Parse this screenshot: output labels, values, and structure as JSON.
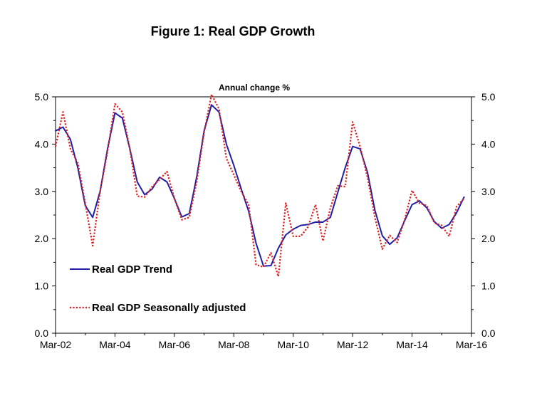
{
  "chart_data": {
    "type": "line",
    "title": "Figure 1: Real GDP Growth",
    "subtitle": "Annual change %",
    "x_tick_labels": [
      "Mar-02",
      "Mar-04",
      "Mar-06",
      "Mar-08",
      "Mar-10",
      "Mar-12",
      "Mar-14",
      "Mar-16"
    ],
    "y_tick_labels": [
      "0.0",
      "1.0",
      "2.0",
      "3.0",
      "4.0",
      "5.0"
    ],
    "ylim": [
      0,
      5
    ],
    "x_start_label": "Mar-02",
    "x_end_label": "Mar-16",
    "series": [
      {
        "name": "Real GDP Trend",
        "color": "#1f1fa8",
        "style": "solid",
        "values": [
          4.28,
          4.36,
          4.1,
          3.5,
          2.7,
          2.45,
          3.0,
          3.9,
          4.66,
          4.55,
          3.9,
          3.2,
          2.93,
          3.05,
          3.3,
          3.2,
          2.85,
          2.46,
          2.53,
          3.3,
          4.28,
          4.83,
          4.68,
          4.0,
          3.55,
          3.05,
          2.58,
          1.9,
          1.42,
          1.43,
          1.8,
          2.08,
          2.2,
          2.28,
          2.3,
          2.35,
          2.35,
          2.45,
          2.98,
          3.5,
          3.95,
          3.9,
          3.4,
          2.6,
          2.06,
          1.88,
          2.02,
          2.38,
          2.72,
          2.8,
          2.65,
          2.36,
          2.22,
          2.3,
          2.55,
          2.88
        ]
      },
      {
        "name": "Real GDP Seasonally adjusted",
        "color": "#e02020",
        "style": "dotted",
        "values": [
          3.95,
          4.68,
          3.9,
          3.6,
          2.75,
          1.85,
          3.0,
          3.85,
          4.85,
          4.68,
          3.9,
          2.9,
          2.88,
          3.1,
          3.25,
          3.42,
          2.85,
          2.4,
          2.45,
          3.2,
          4.25,
          5.05,
          4.75,
          3.7,
          3.35,
          3.0,
          2.72,
          1.45,
          1.4,
          1.7,
          1.2,
          2.75,
          2.05,
          2.05,
          2.25,
          2.72,
          1.95,
          2.65,
          3.12,
          3.1,
          4.47,
          3.95,
          3.3,
          2.45,
          1.78,
          2.07,
          1.92,
          2.4,
          3.02,
          2.75,
          2.7,
          2.33,
          2.28,
          2.05,
          2.68,
          2.85
        ]
      }
    ]
  }
}
